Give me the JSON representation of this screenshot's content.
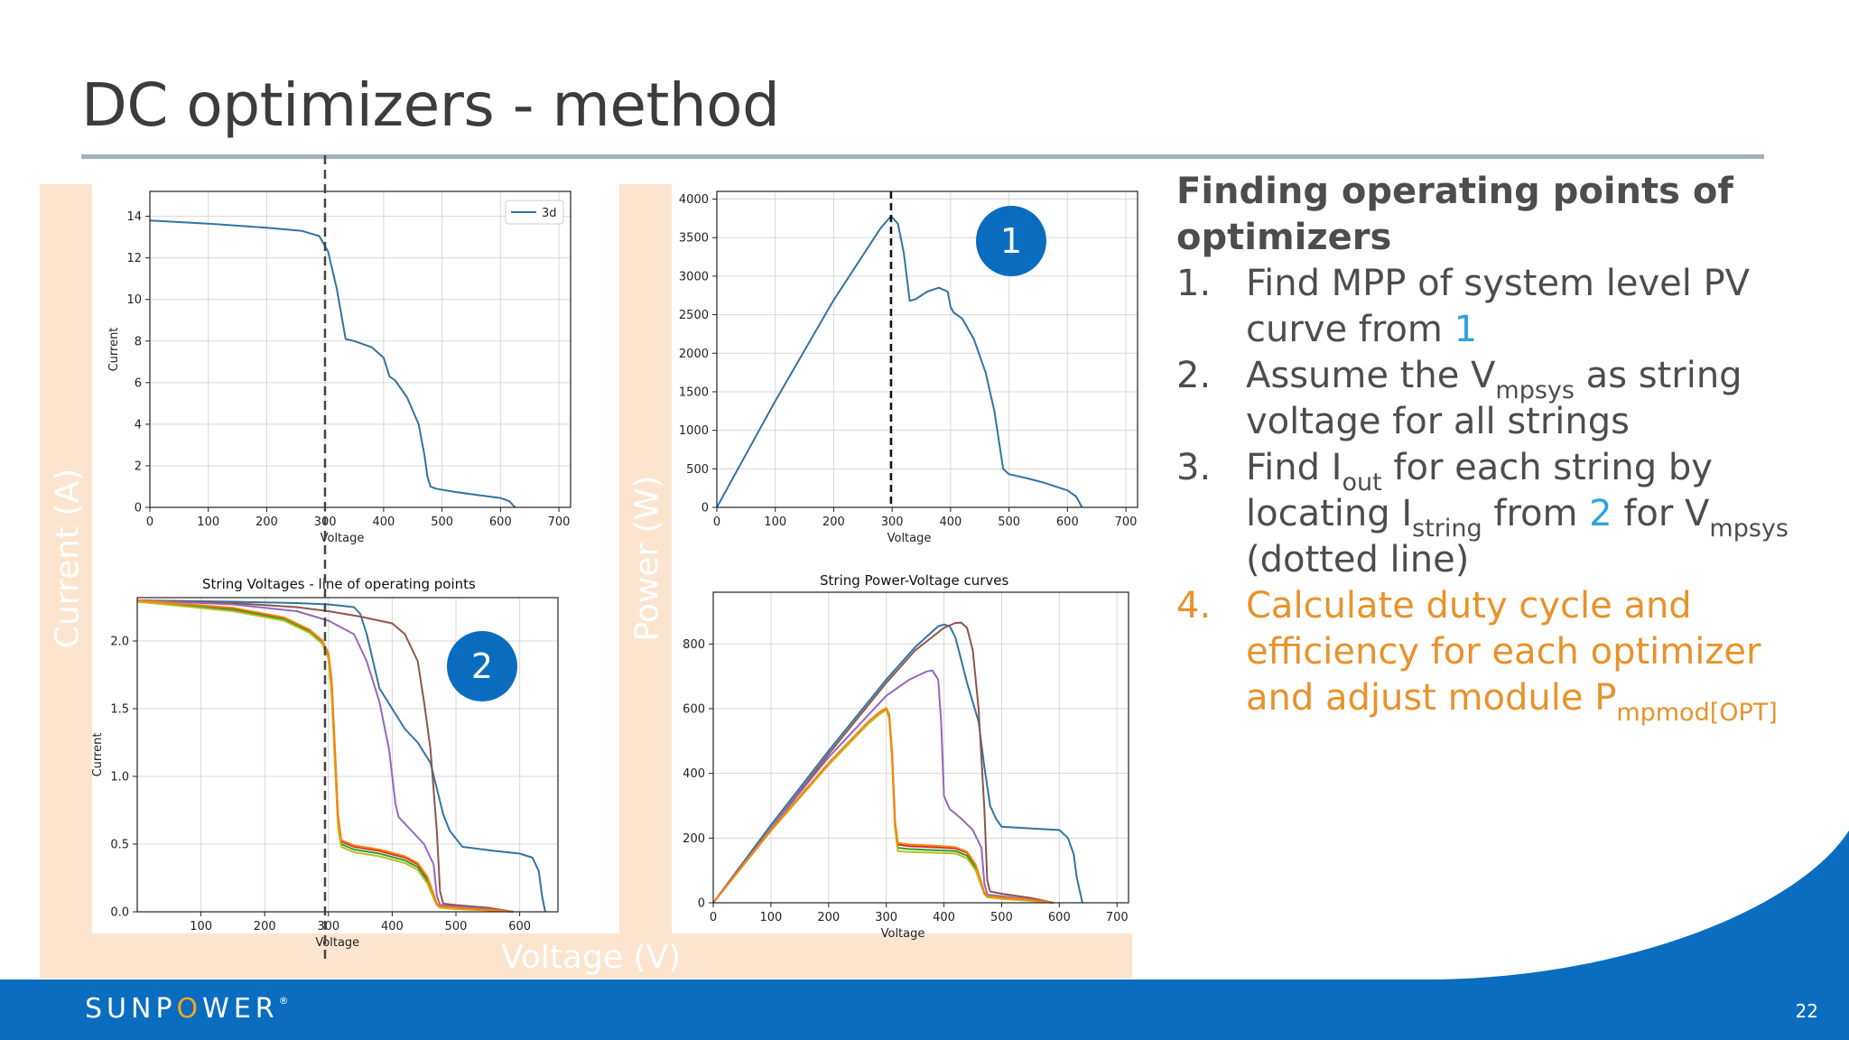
{
  "slide": {
    "title": "DC optimizers - method",
    "page_number": "22",
    "brand_left": "SUNP",
    "brand_o": "O",
    "brand_right": "WER",
    "brand_mark": "®",
    "colors": {
      "accent": "#0a6dbf",
      "highlight": "#e8922b",
      "ref_blue": "#2ea3dc",
      "band": "#fbe5cf"
    }
  },
  "axis_bands": {
    "current": "Current (A)",
    "power": "Power (W)",
    "voltage": "Voltage (V)"
  },
  "callouts": {
    "one": "1",
    "two": "2"
  },
  "sidebar": {
    "heading": "Finding operating points of optimizers",
    "steps": [
      {
        "num": "1.",
        "t1": "Find MPP of system level PV curve from ",
        "ref": "1"
      },
      {
        "num": "2.",
        "t1": "Assume the V",
        "sub1": "mpsys",
        "t2": " as string voltage for all strings"
      },
      {
        "num": "3.",
        "t1": "Find I",
        "sub1": "out",
        "t2": " for each string by locating I",
        "sub2": "string",
        "t3": " from ",
        "ref": "2",
        "t4": " for V",
        "sub3": "mpsys",
        "t5": " (dotted line)"
      },
      {
        "num": "4.",
        "t1": "Calculate duty cycle and efficiency for each optimizer and adjust module P",
        "sub1": "mpmod[OPT]"
      }
    ]
  },
  "chart_data": [
    {
      "type": "line",
      "id": "system-iv",
      "title": "",
      "xlabel": "Voltage",
      "ylabel": "Current",
      "xlim": [
        0,
        720
      ],
      "ylim": [
        0,
        15.2
      ],
      "xticks": [
        0,
        100,
        200,
        300,
        400,
        500,
        600,
        700
      ],
      "yticks": [
        0,
        2,
        4,
        6,
        8,
        10,
        12,
        14
      ],
      "grid": true,
      "legend": "top-right",
      "vline": 298,
      "series": [
        {
          "name": "3d",
          "color": "#3274a1",
          "x": [
            0,
            100,
            200,
            260,
            290,
            305,
            320,
            335,
            350,
            380,
            400,
            410,
            420,
            440,
            460,
            470,
            475,
            480,
            490,
            520,
            560,
            600,
            615,
            625
          ],
          "y": [
            13.8,
            13.65,
            13.45,
            13.3,
            13.05,
            12.3,
            10.5,
            8.1,
            8.0,
            7.7,
            7.2,
            6.3,
            6.1,
            5.3,
            4.0,
            2.5,
            1.5,
            1.0,
            0.9,
            0.75,
            0.6,
            0.45,
            0.3,
            0.0
          ]
        }
      ]
    },
    {
      "type": "line",
      "id": "system-pv",
      "title": "",
      "xlabel": "Voltage",
      "ylabel": "Power",
      "xlim": [
        0,
        720
      ],
      "ylim": [
        0,
        4100
      ],
      "xticks": [
        0,
        100,
        200,
        300,
        400,
        500,
        600,
        700
      ],
      "yticks": [
        0,
        500,
        1000,
        1500,
        2000,
        2500,
        3000,
        3500,
        4000
      ],
      "grid": true,
      "vline": 298,
      "series": [
        {
          "name": "",
          "color": "#3274a1",
          "x": [
            0,
            100,
            200,
            280,
            298,
            310,
            320,
            330,
            340,
            360,
            380,
            395,
            400,
            405,
            420,
            440,
            460,
            475,
            485,
            490,
            500,
            530,
            560,
            600,
            615,
            625
          ],
          "y": [
            0,
            1380,
            2690,
            3620,
            3780,
            3680,
            3300,
            2680,
            2700,
            2800,
            2850,
            2800,
            2600,
            2530,
            2450,
            2180,
            1750,
            1250,
            750,
            500,
            430,
            380,
            320,
            220,
            140,
            0
          ]
        }
      ]
    },
    {
      "type": "line",
      "id": "string-iv",
      "title": "String Voltages - line of operating points",
      "xlabel": "Voltage",
      "ylabel": "Current",
      "xlim": [
        0,
        660
      ],
      "ylim": [
        0,
        2.32
      ],
      "xticks": [
        100,
        200,
        300,
        400,
        500,
        600
      ],
      "yticks": [
        0.0,
        0.5,
        1.0,
        1.5,
        2.0
      ],
      "grid": true,
      "vline": 298,
      "series": [
        {
          "name": "",
          "color": "#3274a1",
          "x": [
            0,
            150,
            250,
            300,
            340,
            350,
            360,
            380,
            400,
            420,
            440,
            460,
            480,
            490,
            510,
            560,
            600,
            620,
            630,
            635,
            640
          ],
          "y": [
            2.3,
            2.29,
            2.28,
            2.27,
            2.25,
            2.2,
            2.05,
            1.65,
            1.5,
            1.35,
            1.25,
            1.1,
            0.72,
            0.6,
            0.48,
            0.45,
            0.43,
            0.4,
            0.3,
            0.12,
            0.0
          ]
        },
        {
          "name": "",
          "color": "#8c564b",
          "x": [
            0,
            150,
            250,
            300,
            350,
            400,
            420,
            440,
            450,
            460,
            470,
            475,
            480,
            500,
            550,
            590
          ],
          "y": [
            2.3,
            2.28,
            2.25,
            2.22,
            2.18,
            2.13,
            2.05,
            1.85,
            1.55,
            1.2,
            0.6,
            0.15,
            0.06,
            0.05,
            0.03,
            0.0
          ]
        },
        {
          "name": "",
          "color": "#9467bd",
          "x": [
            0,
            150,
            250,
            300,
            340,
            360,
            380,
            395,
            405,
            410,
            430,
            450,
            465,
            470,
            475,
            500,
            550,
            590
          ],
          "y": [
            2.3,
            2.27,
            2.22,
            2.15,
            2.05,
            1.85,
            1.55,
            1.2,
            0.8,
            0.7,
            0.6,
            0.5,
            0.35,
            0.12,
            0.05,
            0.04,
            0.02,
            0.0
          ]
        },
        {
          "name": "",
          "color": "#d62728",
          "x": [
            0,
            150,
            230,
            270,
            290,
            300,
            305,
            310,
            315,
            320,
            340,
            380,
            420,
            440,
            455,
            465,
            470,
            475,
            500,
            550,
            590
          ],
          "y": [
            2.3,
            2.24,
            2.17,
            2.08,
            2.0,
            1.9,
            1.7,
            1.2,
            0.7,
            0.52,
            0.48,
            0.45,
            0.4,
            0.35,
            0.25,
            0.12,
            0.06,
            0.04,
            0.03,
            0.015,
            0.0
          ]
        },
        {
          "name": "",
          "color": "#2ca02c",
          "x": [
            0,
            150,
            230,
            270,
            290,
            300,
            305,
            310,
            315,
            320,
            340,
            380,
            420,
            440,
            455,
            465,
            470,
            475,
            500,
            550,
            590
          ],
          "y": [
            2.29,
            2.23,
            2.16,
            2.07,
            1.99,
            1.88,
            1.65,
            1.15,
            0.65,
            0.5,
            0.46,
            0.43,
            0.38,
            0.33,
            0.23,
            0.11,
            0.05,
            0.035,
            0.025,
            0.012,
            0.0
          ]
        },
        {
          "name": "",
          "color": "#bcbd22",
          "x": [
            0,
            150,
            230,
            270,
            290,
            300,
            305,
            310,
            315,
            320,
            340,
            380,
            420,
            440,
            455,
            465,
            470,
            475,
            500,
            550,
            590
          ],
          "y": [
            2.29,
            2.22,
            2.15,
            2.06,
            1.98,
            1.87,
            1.6,
            1.1,
            0.62,
            0.48,
            0.44,
            0.41,
            0.36,
            0.31,
            0.21,
            0.1,
            0.05,
            0.03,
            0.02,
            0.01,
            0.0
          ]
        },
        {
          "name": "",
          "color": "#ff7f0e",
          "x": [
            0,
            150,
            230,
            270,
            290,
            300,
            305,
            310,
            315,
            320,
            340,
            380,
            420,
            440,
            455,
            465,
            470,
            475,
            500,
            550,
            590
          ],
          "y": [
            2.3,
            2.245,
            2.175,
            2.085,
            2.005,
            1.91,
            1.72,
            1.22,
            0.72,
            0.53,
            0.49,
            0.46,
            0.41,
            0.36,
            0.26,
            0.13,
            0.06,
            0.04,
            0.03,
            0.015,
            0.0
          ]
        }
      ]
    },
    {
      "type": "line",
      "id": "string-pv",
      "title": "String Power-Voltage curves",
      "xlabel": "Voltage",
      "ylabel": "Power",
      "xlim": [
        0,
        720
      ],
      "ylim": [
        0,
        960
      ],
      "xticks": [
        0,
        100,
        200,
        300,
        400,
        500,
        600,
        700
      ],
      "yticks": [
        0,
        200,
        400,
        600,
        800
      ],
      "grid": true,
      "series": [
        {
          "name": "",
          "color": "#3274a1",
          "x": [
            0,
            100,
            200,
            300,
            350,
            390,
            400,
            410,
            420,
            440,
            460,
            470,
            480,
            490,
            500,
            550,
            600,
            615,
            625,
            630,
            640
          ],
          "y": [
            0,
            240,
            470,
            690,
            790,
            855,
            860,
            855,
            820,
            680,
            560,
            420,
            300,
            260,
            235,
            230,
            225,
            200,
            150,
            80,
            0
          ]
        },
        {
          "name": "",
          "color": "#8c564b",
          "x": [
            0,
            100,
            200,
            300,
            350,
            400,
            420,
            430,
            440,
            450,
            460,
            470,
            475,
            480,
            500,
            550,
            590
          ],
          "y": [
            0,
            230,
            460,
            680,
            780,
            850,
            865,
            866,
            850,
            780,
            600,
            290,
            70,
            35,
            28,
            15,
            0
          ]
        },
        {
          "name": "",
          "color": "#9467bd",
          "x": [
            0,
            100,
            200,
            300,
            340,
            370,
            380,
            390,
            395,
            400,
            410,
            430,
            450,
            465,
            470,
            475,
            500,
            550,
            590
          ],
          "y": [
            0,
            230,
            450,
            640,
            690,
            715,
            718,
            690,
            560,
            330,
            290,
            260,
            225,
            170,
            60,
            25,
            20,
            10,
            0
          ]
        },
        {
          "name": "",
          "color": "#d62728",
          "x": [
            0,
            100,
            200,
            270,
            290,
            300,
            305,
            310,
            315,
            320,
            340,
            380,
            420,
            440,
            455,
            465,
            470,
            475,
            500,
            550,
            590
          ],
          "y": [
            0,
            225,
            430,
            560,
            590,
            600,
            580,
            460,
            250,
            180,
            175,
            172,
            168,
            155,
            115,
            60,
            30,
            20,
            15,
            8,
            0
          ]
        },
        {
          "name": "",
          "color": "#2ca02c",
          "x": [
            0,
            100,
            200,
            270,
            290,
            300,
            305,
            310,
            315,
            320,
            340,
            380,
            420,
            440,
            455,
            465,
            470,
            475,
            500,
            550,
            590
          ],
          "y": [
            0,
            223,
            428,
            558,
            588,
            598,
            575,
            450,
            240,
            170,
            166,
            163,
            160,
            146,
            107,
            55,
            28,
            18,
            13,
            7,
            0
          ]
        },
        {
          "name": "",
          "color": "#bcbd22",
          "x": [
            0,
            100,
            200,
            270,
            290,
            300,
            305,
            310,
            315,
            320,
            340,
            380,
            420,
            440,
            455,
            465,
            470,
            475,
            500,
            550,
            590
          ],
          "y": [
            0,
            222,
            426,
            555,
            585,
            596,
            570,
            440,
            232,
            160,
            157,
            155,
            152,
            138,
            100,
            52,
            26,
            17,
            12,
            6,
            0
          ]
        },
        {
          "name": "",
          "color": "#ff7f0e",
          "x": [
            0,
            100,
            200,
            270,
            290,
            300,
            305,
            310,
            315,
            320,
            340,
            380,
            420,
            440,
            455,
            465,
            470,
            475,
            500,
            550,
            590
          ],
          "y": [
            0,
            226,
            432,
            562,
            592,
            602,
            583,
            465,
            255,
            185,
            180,
            177,
            172,
            158,
            118,
            62,
            31,
            21,
            16,
            9,
            0
          ]
        }
      ]
    }
  ]
}
